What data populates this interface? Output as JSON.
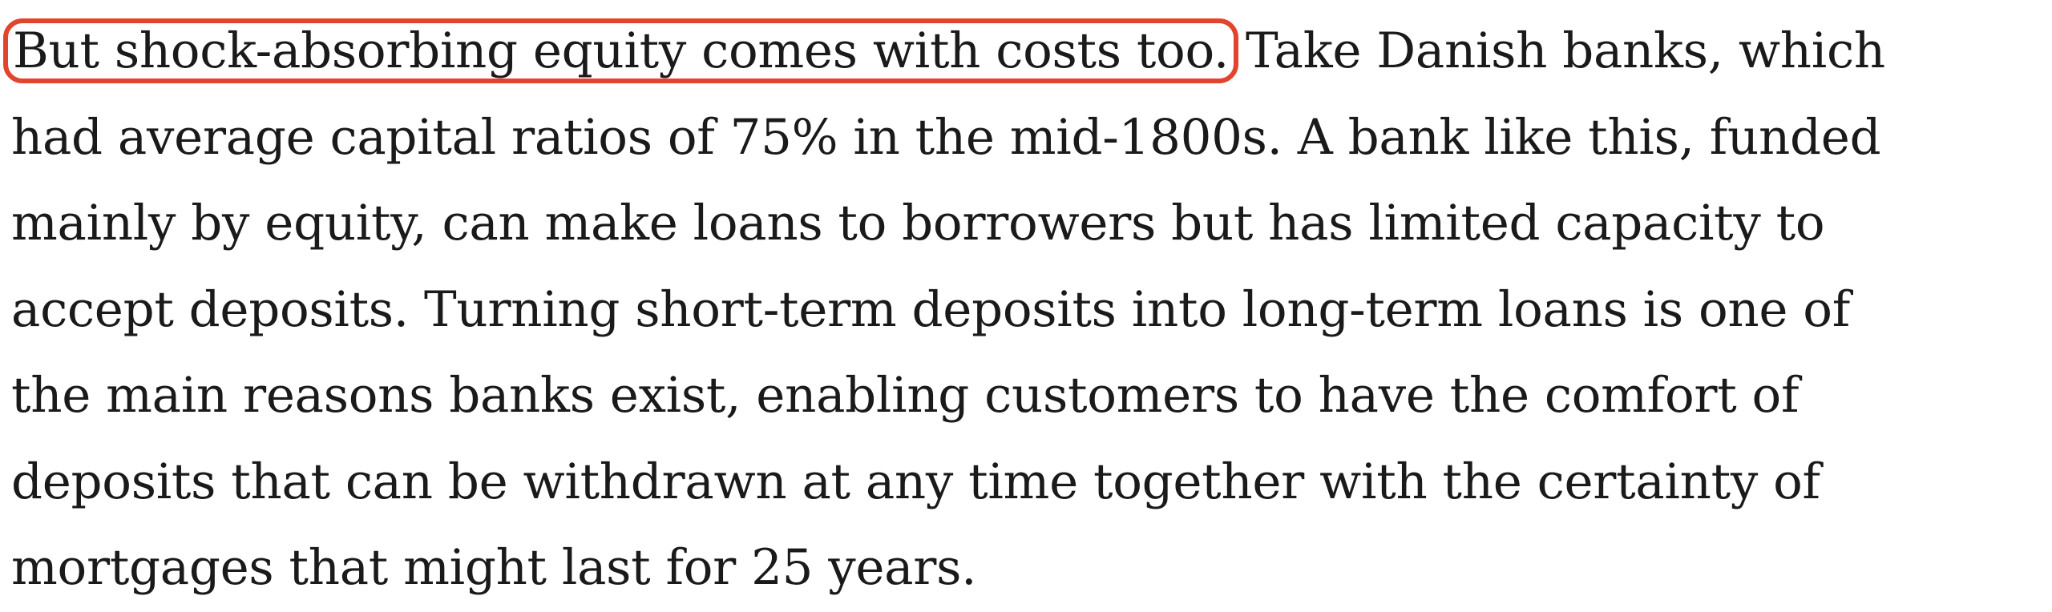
{
  "article": {
    "lines": [
      {
        "highlight": "But shock-absorbing equity comes with costs too.",
        "rest": " Take Danish banks, which"
      },
      {
        "text": "had average capital ratios of 75% in the mid-1800s. A bank like this, funded"
      },
      {
        "text": "mainly by equity, can make loans to borrowers but has limited capacity to"
      },
      {
        "text": "accept deposits. Turning short-term deposits into long-term loans is one of"
      },
      {
        "text": "the main reasons banks exist, enabling customers to have the comfort of"
      },
      {
        "text": "deposits that can be withdrawn at any time together with the certainty of"
      },
      {
        "text": "mortgages that might last for 25 years."
      }
    ]
  },
  "colors": {
    "highlight_border": "#e2452d",
    "text": "#1a1a1a",
    "background": "#ffffff"
  }
}
